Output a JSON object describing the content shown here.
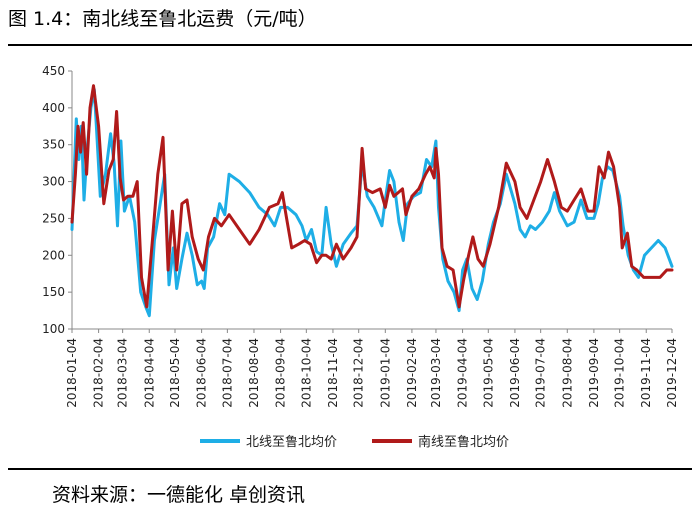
{
  "title": "图 1.4：南北线至鲁北运费（元/吨）",
  "source": "资料来源：一德能化 卓创资讯",
  "colors": {
    "north": "#1eaee6",
    "south": "#b01a1a"
  },
  "chart_data": {
    "type": "line",
    "title": "图 1.4：南北线至鲁北运费（元/吨）",
    "xlabel": "",
    "ylabel": "",
    "ylim": [
      100,
      450
    ],
    "yticks": [
      100,
      150,
      200,
      250,
      300,
      350,
      400,
      450
    ],
    "xlim": [
      "2018-01-04",
      "2019-12-04"
    ],
    "xticks": [
      "2018-01-04",
      "2018-02-04",
      "2018-03-04",
      "2018-04-04",
      "2018-05-04",
      "2018-06-04",
      "2018-07-04",
      "2018-08-04",
      "2018-09-04",
      "2018-10-04",
      "2018-11-04",
      "2018-12-04",
      "2019-01-04",
      "2019-02-04",
      "2019-03-04",
      "2019-04-04",
      "2019-05-04",
      "2019-06-04",
      "2019-07-04",
      "2019-08-04",
      "2019-09-04",
      "2019-10-04",
      "2019-11-04",
      "2019-12-04"
    ],
    "grid": false,
    "legend": "bottom",
    "series": [
      {
        "name": "北线至鲁北均价",
        "color": "#1eaee6",
        "points": [
          [
            "2018-01-04",
            235
          ],
          [
            "2018-01-09",
            385
          ],
          [
            "2018-01-12",
            330
          ],
          [
            "2018-01-15",
            375
          ],
          [
            "2018-01-18",
            275
          ],
          [
            "2018-01-22",
            350
          ],
          [
            "2018-01-26",
            400
          ],
          [
            "2018-01-30",
            425
          ],
          [
            "2018-02-06",
            280
          ],
          [
            "2018-02-12",
            310
          ],
          [
            "2018-02-18",
            365
          ],
          [
            "2018-02-22",
            325
          ],
          [
            "2018-02-26",
            240
          ],
          [
            "2018-03-02",
            355
          ],
          [
            "2018-03-06",
            260
          ],
          [
            "2018-03-12",
            280
          ],
          [
            "2018-03-18",
            245
          ],
          [
            "2018-03-25",
            150
          ],
          [
            "2018-03-31",
            130
          ],
          [
            "2018-04-04",
            118
          ],
          [
            "2018-04-10",
            220
          ],
          [
            "2018-04-16",
            265
          ],
          [
            "2018-04-22",
            310
          ],
          [
            "2018-04-27",
            160
          ],
          [
            "2018-05-02",
            210
          ],
          [
            "2018-05-06",
            155
          ],
          [
            "2018-05-12",
            195
          ],
          [
            "2018-05-18",
            230
          ],
          [
            "2018-05-24",
            200
          ],
          [
            "2018-05-30",
            160
          ],
          [
            "2018-06-04",
            165
          ],
          [
            "2018-06-07",
            155
          ],
          [
            "2018-06-11",
            210
          ],
          [
            "2018-06-18",
            225
          ],
          [
            "2018-06-25",
            270
          ],
          [
            "2018-07-01",
            255
          ],
          [
            "2018-07-06",
            310
          ],
          [
            "2018-07-18",
            300
          ],
          [
            "2018-07-30",
            285
          ],
          [
            "2018-08-10",
            265
          ],
          [
            "2018-08-20",
            255
          ],
          [
            "2018-08-28",
            240
          ],
          [
            "2018-09-04",
            265
          ],
          [
            "2018-09-12",
            265
          ],
          [
            "2018-09-22",
            255
          ],
          [
            "2018-09-29",
            240
          ],
          [
            "2018-10-04",
            220
          ],
          [
            "2018-10-10",
            235
          ],
          [
            "2018-10-16",
            205
          ],
          [
            "2018-10-22",
            200
          ],
          [
            "2018-10-27",
            265
          ],
          [
            "2018-11-02",
            215
          ],
          [
            "2018-11-08",
            185
          ],
          [
            "2018-11-16",
            215
          ],
          [
            "2018-11-25",
            230
          ],
          [
            "2018-12-02",
            240
          ],
          [
            "2018-12-08",
            325
          ],
          [
            "2018-12-14",
            280
          ],
          [
            "2018-12-22",
            265
          ],
          [
            "2018-12-31",
            240
          ],
          [
            "2019-01-04",
            275
          ],
          [
            "2019-01-09",
            315
          ],
          [
            "2019-01-14",
            300
          ],
          [
            "2019-01-20",
            245
          ],
          [
            "2019-01-25",
            220
          ],
          [
            "2019-01-30",
            270
          ],
          [
            "2019-02-06",
            280
          ],
          [
            "2019-02-14",
            285
          ],
          [
            "2019-02-21",
            330
          ],
          [
            "2019-02-27",
            320
          ],
          [
            "2019-03-04",
            355
          ],
          [
            "2019-03-07",
            265
          ],
          [
            "2019-03-12",
            195
          ],
          [
            "2019-03-18",
            165
          ],
          [
            "2019-03-25",
            150
          ],
          [
            "2019-03-31",
            125
          ],
          [
            "2019-04-04",
            180
          ],
          [
            "2019-04-09",
            195
          ],
          [
            "2019-04-15",
            155
          ],
          [
            "2019-04-21",
            140
          ],
          [
            "2019-04-27",
            165
          ],
          [
            "2019-05-04",
            215
          ],
          [
            "2019-05-10",
            245
          ],
          [
            "2019-05-18",
            270
          ],
          [
            "2019-05-25",
            310
          ],
          [
            "2019-06-04",
            270
          ],
          [
            "2019-06-10",
            235
          ],
          [
            "2019-06-16",
            225
          ],
          [
            "2019-06-22",
            240
          ],
          [
            "2019-06-28",
            235
          ],
          [
            "2019-07-06",
            245
          ],
          [
            "2019-07-14",
            260
          ],
          [
            "2019-07-20",
            285
          ],
          [
            "2019-07-26",
            260
          ],
          [
            "2019-08-04",
            240
          ],
          [
            "2019-08-12",
            245
          ],
          [
            "2019-08-20",
            275
          ],
          [
            "2019-08-27",
            250
          ],
          [
            "2019-09-04",
            250
          ],
          [
            "2019-09-09",
            270
          ],
          [
            "2019-09-14",
            305
          ],
          [
            "2019-09-20",
            320
          ],
          [
            "2019-09-26",
            315
          ],
          [
            "2019-10-04",
            280
          ],
          [
            "2019-10-08",
            240
          ],
          [
            "2019-10-14",
            200
          ],
          [
            "2019-10-20",
            180
          ],
          [
            "2019-10-26",
            170
          ],
          [
            "2019-11-02",
            200
          ],
          [
            "2019-11-10",
            210
          ],
          [
            "2019-11-18",
            220
          ],
          [
            "2019-11-26",
            210
          ],
          [
            "2019-12-04",
            185
          ]
        ]
      },
      {
        "name": "南线至鲁北均价",
        "color": "#b01a1a",
        "points": [
          [
            "2018-01-04",
            245
          ],
          [
            "2018-01-08",
            310
          ],
          [
            "2018-01-11",
            375
          ],
          [
            "2018-01-14",
            340
          ],
          [
            "2018-01-17",
            380
          ],
          [
            "2018-01-21",
            310
          ],
          [
            "2018-01-25",
            400
          ],
          [
            "2018-01-29",
            430
          ],
          [
            "2018-02-04",
            375
          ],
          [
            "2018-02-10",
            270
          ],
          [
            "2018-02-16",
            315
          ],
          [
            "2018-02-21",
            330
          ],
          [
            "2018-02-25",
            395
          ],
          [
            "2018-03-01",
            305
          ],
          [
            "2018-03-05",
            275
          ],
          [
            "2018-03-10",
            280
          ],
          [
            "2018-03-16",
            280
          ],
          [
            "2018-03-21",
            300
          ],
          [
            "2018-03-26",
            170
          ],
          [
            "2018-04-01",
            130
          ],
          [
            "2018-04-08",
            225
          ],
          [
            "2018-04-14",
            310
          ],
          [
            "2018-04-20",
            360
          ],
          [
            "2018-04-26",
            180
          ],
          [
            "2018-05-01",
            260
          ],
          [
            "2018-05-06",
            180
          ],
          [
            "2018-05-12",
            270
          ],
          [
            "2018-05-18",
            275
          ],
          [
            "2018-05-24",
            225
          ],
          [
            "2018-05-31",
            195
          ],
          [
            "2018-06-06",
            180
          ],
          [
            "2018-06-12",
            225
          ],
          [
            "2018-06-19",
            250
          ],
          [
            "2018-06-27",
            240
          ],
          [
            "2018-07-06",
            255
          ],
          [
            "2018-07-18",
            235
          ],
          [
            "2018-07-30",
            215
          ],
          [
            "2018-08-10",
            235
          ],
          [
            "2018-08-22",
            265
          ],
          [
            "2018-09-01",
            270
          ],
          [
            "2018-09-06",
            285
          ],
          [
            "2018-09-11",
            250
          ],
          [
            "2018-09-17",
            210
          ],
          [
            "2018-09-25",
            215
          ],
          [
            "2018-10-02",
            220
          ],
          [
            "2018-10-09",
            215
          ],
          [
            "2018-10-16",
            190
          ],
          [
            "2018-10-22",
            200
          ],
          [
            "2018-10-27",
            200
          ],
          [
            "2018-11-02",
            195
          ],
          [
            "2018-11-08",
            215
          ],
          [
            "2018-11-16",
            195
          ],
          [
            "2018-11-25",
            210
          ],
          [
            "2018-12-02",
            225
          ],
          [
            "2018-12-08",
            345
          ],
          [
            "2018-12-12",
            290
          ],
          [
            "2018-12-20",
            285
          ],
          [
            "2018-12-29",
            290
          ],
          [
            "2019-01-04",
            265
          ],
          [
            "2019-01-09",
            295
          ],
          [
            "2019-01-14",
            280
          ],
          [
            "2019-01-19",
            285
          ],
          [
            "2019-01-24",
            290
          ],
          [
            "2019-01-28",
            255
          ],
          [
            "2019-02-04",
            280
          ],
          [
            "2019-02-12",
            290
          ],
          [
            "2019-02-20",
            310
          ],
          [
            "2019-02-25",
            320
          ],
          [
            "2019-03-02",
            305
          ],
          [
            "2019-03-04",
            345
          ],
          [
            "2019-03-07",
            310
          ],
          [
            "2019-03-11",
            210
          ],
          [
            "2019-03-17",
            185
          ],
          [
            "2019-03-24",
            180
          ],
          [
            "2019-03-31",
            130
          ],
          [
            "2019-04-05",
            165
          ],
          [
            "2019-04-11",
            200
          ],
          [
            "2019-04-16",
            225
          ],
          [
            "2019-04-22",
            195
          ],
          [
            "2019-04-28",
            185
          ],
          [
            "2019-05-06",
            215
          ],
          [
            "2019-05-16",
            265
          ],
          [
            "2019-05-25",
            325
          ],
          [
            "2019-06-04",
            300
          ],
          [
            "2019-06-10",
            265
          ],
          [
            "2019-06-18",
            250
          ],
          [
            "2019-06-26",
            275
          ],
          [
            "2019-07-04",
            300
          ],
          [
            "2019-07-12",
            330
          ],
          [
            "2019-07-20",
            300
          ],
          [
            "2019-07-28",
            265
          ],
          [
            "2019-08-04",
            260
          ],
          [
            "2019-08-12",
            275
          ],
          [
            "2019-08-20",
            290
          ],
          [
            "2019-08-28",
            260
          ],
          [
            "2019-09-04",
            260
          ],
          [
            "2019-09-10",
            320
          ],
          [
            "2019-09-16",
            305
          ],
          [
            "2019-09-21",
            340
          ],
          [
            "2019-09-27",
            320
          ],
          [
            "2019-10-04",
            265
          ],
          [
            "2019-10-07",
            210
          ],
          [
            "2019-10-13",
            230
          ],
          [
            "2019-10-18",
            185
          ],
          [
            "2019-10-24",
            180
          ],
          [
            "2019-11-01",
            170
          ],
          [
            "2019-11-10",
            170
          ],
          [
            "2019-11-20",
            170
          ],
          [
            "2019-11-28",
            180
          ],
          [
            "2019-12-04",
            180
          ]
        ]
      }
    ]
  }
}
